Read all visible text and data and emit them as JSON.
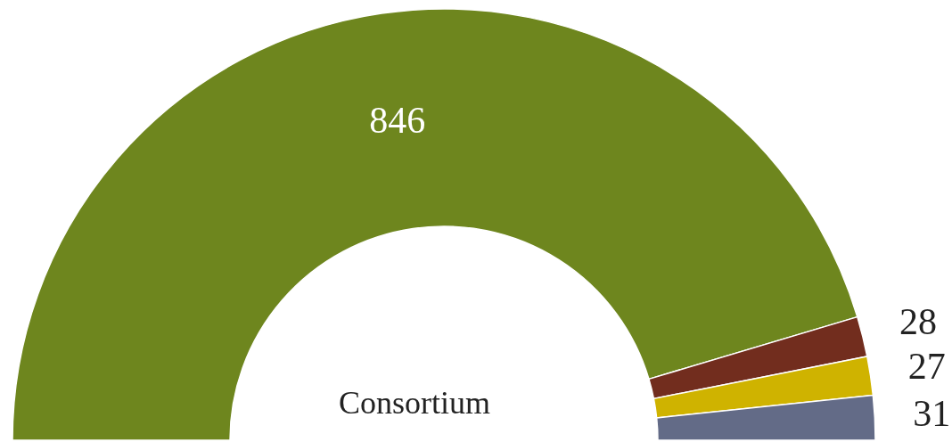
{
  "chart_data": {
    "type": "donut",
    "categories": [
      null,
      null,
      null,
      null
    ],
    "values": [
      846,
      28,
      27,
      31
    ],
    "colors": [
      "#6e861e",
      "#722d1e",
      "#cfb300",
      "#636b87"
    ],
    "data_labels": true,
    "annotations": [
      "Consortium"
    ]
  }
}
